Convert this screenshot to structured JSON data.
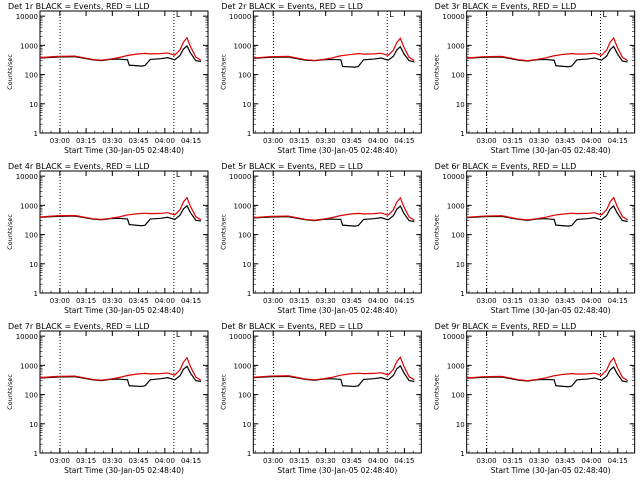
{
  "x_tick_labels": [
    "03:00",
    "03:15",
    "03:30",
    "03:45",
    "04:00",
    "04:15"
  ],
  "y_tick_labels": [
    "1",
    "10",
    "100",
    "1000",
    "10000"
  ],
  "ylabel": "Counts/sec",
  "xlabel": "Start Time (30-Jan-05 02:48:40)",
  "legend_marker": "L",
  "colors": {
    "events": "#000000",
    "lld": "#e00000",
    "axes": "#000000",
    "background": "#ffffff"
  },
  "chart_data": [
    {
      "type": "line",
      "title": "Det 1r BLACK = Events, RED = LLD",
      "xlabel": "Start Time (30-Jan-05 02:48:40)",
      "ylabel": "Counts/sec",
      "x_unit": "minutes after 02:48:40",
      "xlim": [
        0,
        96
      ],
      "ylim": [
        1,
        15000
      ],
      "yscale": "log",
      "vlines_x": [
        11.5,
        76.5
      ],
      "series": [
        {
          "name": "Events",
          "color": "#000000",
          "x": [
            0,
            10,
            20,
            30,
            35,
            40,
            45,
            50,
            51,
            58,
            60,
            63,
            69,
            73,
            77,
            80,
            82,
            84,
            86,
            89,
            92
          ],
          "y": [
            370,
            400,
            410,
            320,
            300,
            330,
            340,
            320,
            210,
            195,
            205,
            330,
            350,
            380,
            320,
            450,
            750,
            950,
            550,
            300,
            280
          ]
        },
        {
          "name": "LLD",
          "color": "#e00000",
          "x": [
            0,
            10,
            20,
            30,
            35,
            40,
            45,
            50,
            55,
            60,
            63,
            69,
            73,
            77,
            80,
            82,
            84,
            86,
            89,
            92
          ],
          "y": [
            380,
            420,
            430,
            330,
            310,
            340,
            380,
            450,
            500,
            530,
            510,
            520,
            550,
            460,
            700,
            1300,
            1800,
            900,
            400,
            310
          ]
        }
      ]
    },
    {
      "type": "line",
      "title": "Det 2r BLACK = Events, RED = LLD",
      "xlabel": "Start Time (30-Jan-05 02:48:40)",
      "ylabel": "Counts/sec",
      "x_unit": "minutes after 02:48:40",
      "xlim": [
        0,
        96
      ],
      "ylim": [
        1,
        15000
      ],
      "yscale": "log",
      "vlines_x": [
        11.5,
        76.5
      ],
      "series": [
        {
          "name": "Events",
          "color": "#000000",
          "x": [
            0,
            10,
            20,
            30,
            35,
            40,
            45,
            50,
            51,
            58,
            60,
            63,
            69,
            73,
            77,
            80,
            82,
            84,
            86,
            89,
            92
          ],
          "y": [
            360,
            390,
            400,
            310,
            300,
            320,
            330,
            320,
            190,
            180,
            190,
            320,
            340,
            370,
            310,
            420,
            700,
            900,
            520,
            300,
            270
          ]
        },
        {
          "name": "LLD",
          "color": "#e00000",
          "x": [
            0,
            10,
            20,
            30,
            35,
            40,
            45,
            50,
            55,
            60,
            63,
            69,
            73,
            77,
            80,
            82,
            84,
            86,
            89,
            92
          ],
          "y": [
            370,
            410,
            420,
            320,
            305,
            330,
            370,
            440,
            480,
            520,
            500,
            510,
            540,
            450,
            680,
            1250,
            1750,
            880,
            390,
            300
          ]
        }
      ]
    },
    {
      "type": "line",
      "title": "Det 3r BLACK = Events, RED = LLD",
      "xlabel": "Start Time (30-Jan-05 02:48:40)",
      "ylabel": "Counts/sec",
      "x_unit": "minutes after 02:48:40",
      "xlim": [
        0,
        96
      ],
      "ylim": [
        1,
        15000
      ],
      "yscale": "log",
      "vlines_x": [
        11.5,
        76.5
      ],
      "series": [
        {
          "name": "Events",
          "color": "#000000",
          "x": [
            0,
            10,
            20,
            30,
            35,
            40,
            45,
            50,
            51,
            58,
            60,
            63,
            69,
            73,
            77,
            80,
            82,
            84,
            86,
            89,
            92
          ],
          "y": [
            360,
            390,
            400,
            310,
            290,
            320,
            330,
            310,
            200,
            185,
            195,
            320,
            340,
            370,
            310,
            430,
            720,
            920,
            530,
            290,
            270
          ]
        },
        {
          "name": "LLD",
          "color": "#e00000",
          "x": [
            0,
            10,
            20,
            30,
            35,
            40,
            45,
            50,
            55,
            60,
            63,
            69,
            73,
            77,
            80,
            82,
            84,
            86,
            89,
            92
          ],
          "y": [
            370,
            410,
            420,
            320,
            300,
            330,
            370,
            440,
            490,
            520,
            500,
            510,
            540,
            450,
            690,
            1280,
            1780,
            890,
            390,
            300
          ]
        }
      ]
    },
    {
      "type": "line",
      "title": "Det 4r BLACK = Events, RED = LLD",
      "xlabel": "Start Time (30-Jan-05 02:48:40)",
      "ylabel": "Counts/sec",
      "x_unit": "minutes after 02:48:40",
      "xlim": [
        0,
        96
      ],
      "ylim": [
        1,
        15000
      ],
      "yscale": "log",
      "vlines_x": [
        11.5,
        76.5
      ],
      "series": [
        {
          "name": "Events",
          "color": "#000000",
          "x": [
            0,
            10,
            20,
            30,
            35,
            40,
            45,
            50,
            51,
            58,
            60,
            63,
            69,
            73,
            77,
            80,
            82,
            84,
            86,
            89,
            92
          ],
          "y": [
            390,
            420,
            430,
            340,
            320,
            350,
            360,
            340,
            220,
            200,
            210,
            340,
            360,
            390,
            330,
            460,
            760,
            960,
            560,
            310,
            290
          ]
        },
        {
          "name": "LLD",
          "color": "#e00000",
          "x": [
            0,
            10,
            20,
            30,
            35,
            40,
            45,
            50,
            55,
            60,
            63,
            69,
            73,
            77,
            80,
            82,
            84,
            86,
            89,
            92
          ],
          "y": [
            400,
            440,
            450,
            350,
            330,
            360,
            400,
            470,
            510,
            540,
            520,
            530,
            560,
            470,
            710,
            1320,
            1820,
            910,
            410,
            320
          ]
        }
      ]
    },
    {
      "type": "line",
      "title": "Det 5r BLACK = Events, RED = LLD",
      "xlabel": "Start Time (30-Jan-05 02:48:40)",
      "ylabel": "Counts/sec",
      "x_unit": "minutes after 02:48:40",
      "xlim": [
        0,
        96
      ],
      "ylim": [
        1,
        15000
      ],
      "yscale": "log",
      "vlines_x": [
        11.5,
        76.5
      ],
      "series": [
        {
          "name": "Events",
          "color": "#000000",
          "x": [
            0,
            10,
            20,
            30,
            35,
            40,
            45,
            50,
            51,
            58,
            60,
            63,
            69,
            73,
            77,
            80,
            82,
            84,
            86,
            89,
            92
          ],
          "y": [
            370,
            400,
            410,
            320,
            300,
            330,
            340,
            330,
            210,
            195,
            205,
            330,
            350,
            380,
            320,
            440,
            740,
            940,
            540,
            300,
            280
          ]
        },
        {
          "name": "LLD",
          "color": "#e00000",
          "x": [
            0,
            10,
            20,
            30,
            35,
            40,
            45,
            50,
            55,
            60,
            63,
            69,
            73,
            77,
            80,
            82,
            84,
            86,
            89,
            92
          ],
          "y": [
            380,
            420,
            430,
            330,
            310,
            340,
            380,
            450,
            500,
            530,
            510,
            520,
            550,
            460,
            700,
            1300,
            1800,
            900,
            400,
            310
          ]
        }
      ]
    },
    {
      "type": "line",
      "title": "Det 6r BLACK = Events, RED = LLD",
      "xlabel": "Start Time (30-Jan-05 02:48:40)",
      "ylabel": "Counts/sec",
      "x_unit": "minutes after 02:48:40",
      "xlim": [
        0,
        96
      ],
      "ylim": [
        1,
        15000
      ],
      "yscale": "log",
      "vlines_x": [
        11.5,
        76.5
      ],
      "series": [
        {
          "name": "Events",
          "color": "#000000",
          "x": [
            0,
            10,
            20,
            30,
            35,
            40,
            45,
            50,
            51,
            58,
            60,
            63,
            69,
            73,
            77,
            80,
            82,
            84,
            86,
            89,
            92
          ],
          "y": [
            380,
            410,
            420,
            330,
            310,
            340,
            350,
            330,
            210,
            195,
            205,
            330,
            350,
            380,
            320,
            450,
            750,
            950,
            550,
            300,
            280
          ]
        },
        {
          "name": "LLD",
          "color": "#e00000",
          "x": [
            0,
            10,
            20,
            30,
            35,
            40,
            45,
            50,
            55,
            60,
            63,
            69,
            73,
            77,
            80,
            82,
            84,
            86,
            89,
            92
          ],
          "y": [
            390,
            430,
            440,
            340,
            320,
            350,
            390,
            460,
            500,
            540,
            520,
            530,
            560,
            470,
            710,
            1320,
            1850,
            920,
            410,
            320
          ]
        }
      ]
    },
    {
      "type": "line",
      "title": "Det 7r BLACK = Events, RED = LLD",
      "xlabel": "Start Time (30-Jan-05 02:48:40)",
      "ylabel": "Counts/sec",
      "x_unit": "minutes after 02:48:40",
      "xlim": [
        0,
        96
      ],
      "ylim": [
        1,
        15000
      ],
      "yscale": "log",
      "vlines_x": [
        11.5,
        76.5
      ],
      "series": [
        {
          "name": "Events",
          "color": "#000000",
          "x": [
            0,
            10,
            20,
            30,
            35,
            40,
            45,
            50,
            51,
            58,
            60,
            63,
            69,
            73,
            77,
            80,
            82,
            84,
            86,
            89,
            92
          ],
          "y": [
            370,
            400,
            410,
            320,
            300,
            330,
            340,
            320,
            200,
            190,
            200,
            320,
            350,
            380,
            320,
            440,
            740,
            930,
            540,
            300,
            280
          ]
        },
        {
          "name": "LLD",
          "color": "#e00000",
          "x": [
            0,
            10,
            20,
            30,
            35,
            40,
            45,
            50,
            55,
            60,
            63,
            69,
            73,
            77,
            80,
            82,
            84,
            86,
            89,
            92
          ],
          "y": [
            380,
            420,
            430,
            330,
            310,
            340,
            380,
            450,
            500,
            530,
            510,
            520,
            550,
            460,
            700,
            1300,
            1800,
            900,
            400,
            310
          ]
        }
      ]
    },
    {
      "type": "line",
      "title": "Det 8r BLACK = Events, RED = LLD",
      "xlabel": "Start Time (30-Jan-05 02:48:40)",
      "ylabel": "Counts/sec",
      "x_unit": "minutes after 02:48:40",
      "xlim": [
        0,
        96
      ],
      "ylim": [
        1,
        15000
      ],
      "yscale": "log",
      "vlines_x": [
        11.5,
        76.5
      ],
      "series": [
        {
          "name": "Events",
          "color": "#000000",
          "x": [
            0,
            10,
            20,
            30,
            35,
            40,
            45,
            50,
            51,
            58,
            60,
            63,
            69,
            73,
            77,
            80,
            82,
            84,
            86,
            89,
            92
          ],
          "y": [
            380,
            410,
            420,
            330,
            310,
            340,
            350,
            330,
            200,
            190,
            200,
            330,
            350,
            380,
            320,
            450,
            760,
            960,
            560,
            300,
            280
          ]
        },
        {
          "name": "LLD",
          "color": "#e00000",
          "x": [
            0,
            10,
            20,
            30,
            35,
            40,
            45,
            50,
            55,
            60,
            63,
            69,
            73,
            77,
            80,
            82,
            84,
            86,
            89,
            92
          ],
          "y": [
            390,
            430,
            440,
            340,
            320,
            350,
            390,
            460,
            510,
            540,
            520,
            530,
            560,
            470,
            720,
            1350,
            1900,
            940,
            410,
            320
          ]
        }
      ]
    },
    {
      "type": "line",
      "title": "Det 9r BLACK = Events, RED = LLD",
      "xlabel": "Start Time (30-Jan-05 02:48:40)",
      "ylabel": "Counts/sec",
      "x_unit": "minutes after 02:48:40",
      "xlim": [
        0,
        96
      ],
      "ylim": [
        1,
        15000
      ],
      "yscale": "log",
      "vlines_x": [
        11.5,
        76.5
      ],
      "series": [
        {
          "name": "Events",
          "color": "#000000",
          "x": [
            0,
            10,
            20,
            30,
            35,
            40,
            45,
            50,
            51,
            58,
            60,
            63,
            69,
            73,
            77,
            80,
            82,
            84,
            86,
            89,
            92
          ],
          "y": [
            360,
            390,
            400,
            310,
            290,
            320,
            330,
            320,
            200,
            185,
            195,
            320,
            340,
            370,
            310,
            420,
            700,
            880,
            520,
            290,
            270
          ]
        },
        {
          "name": "LLD",
          "color": "#e00000",
          "x": [
            0,
            10,
            20,
            30,
            35,
            40,
            45,
            50,
            55,
            60,
            63,
            69,
            73,
            77,
            80,
            82,
            84,
            86,
            89,
            92
          ],
          "y": [
            370,
            410,
            420,
            320,
            300,
            330,
            370,
            440,
            490,
            520,
            500,
            510,
            540,
            450,
            690,
            1280,
            1780,
            880,
            390,
            300
          ]
        }
      ]
    }
  ]
}
